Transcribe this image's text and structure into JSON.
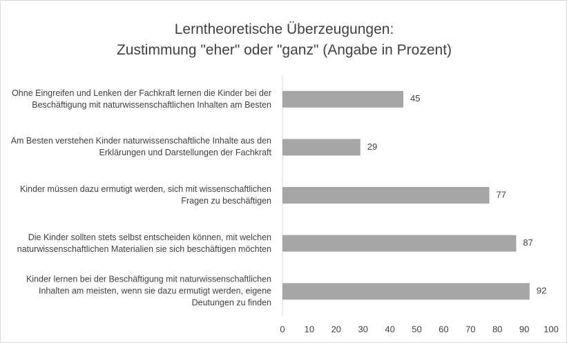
{
  "chart_data": {
    "type": "barh",
    "title": "Lerntheoretische Überzeugungen:",
    "subtitle": "Zustimmung \"eher\" oder \"ganz\" (Angabe in Prozent)",
    "categories": [
      "Ohne Eingreifen und Lenken der Fachkraft lernen die Kinder bei der Beschäftigung mit naturwissenschaftlichen Inhalten am Besten",
      "Am Besten verstehen Kinder naturwissenschaftliche Inhalte aus den Erklärungen und Darstellungen der Fachkraft",
      "Kinder müssen dazu ermutigt werden, sich mit wissenschaftlichen Fragen zu beschäftigen",
      "Die Kinder sollten stets selbst entscheiden können, mit welchen naturwissenschaftlichen Materialien sie sich beschäftigen möchten",
      "Kinder lernen bei der Beschäftigung mit naturwissenschaftlichen Inhalten am meisten, wenn sie dazu ermutigt werden, eigene Deutungen zu finden"
    ],
    "values": [
      45,
      29,
      77,
      87,
      92
    ],
    "color": "#a6a6a6",
    "xlim": [
      0,
      100
    ],
    "xticks": [
      0,
      10,
      20,
      30,
      40,
      50,
      60,
      70,
      80,
      90,
      100
    ],
    "grid": false
  }
}
